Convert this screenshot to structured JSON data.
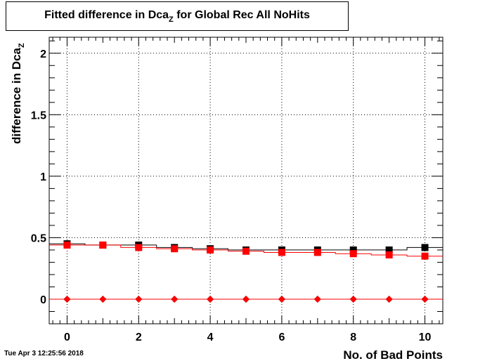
{
  "title_prefix": "Fitted difference in Dca",
  "title_sub": "Z",
  "title_suffix": " for Global Rec All NoHits",
  "timestamp": "Tue Apr  3 12:25:56 2018",
  "chart_data": {
    "type": "scatter",
    "xlabel": "No. of Bad Points",
    "ylabel_prefix": "difference in Dca",
    "ylabel_sub": "Z",
    "xlim": [
      -0.5,
      10.5
    ],
    "ylim": [
      -0.2,
      2.13
    ],
    "grid": true,
    "x_ticks": [
      0,
      2,
      4,
      6,
      8,
      10
    ],
    "y_ticks": [
      0,
      0.5,
      1,
      1.5,
      2
    ],
    "y_tick_labels": [
      "0",
      "0.5",
      "1",
      "1.5",
      "2"
    ],
    "series": [
      {
        "color": "#000000",
        "marker": "square",
        "x": [
          0,
          1,
          2,
          3,
          4,
          5,
          6,
          7,
          8,
          9,
          10
        ],
        "values": [
          0.45,
          0.44,
          0.44,
          0.42,
          0.41,
          0.4,
          0.4,
          0.4,
          0.4,
          0.4,
          0.42
        ]
      },
      {
        "color": "#ff0000",
        "marker": "square",
        "x": [
          0,
          1,
          2,
          3,
          4,
          5,
          6,
          7,
          8,
          9,
          10
        ],
        "values": [
          0.44,
          0.44,
          0.42,
          0.41,
          0.4,
          0.39,
          0.38,
          0.38,
          0.37,
          0.36,
          0.35
        ]
      },
      {
        "color": "#000000",
        "marker": "diamond",
        "x": [
          0,
          1,
          2,
          3,
          4,
          5,
          6,
          7,
          8,
          9,
          10
        ],
        "values": [
          0,
          0,
          0,
          0,
          0,
          0,
          0,
          0,
          0,
          0,
          0
        ]
      },
      {
        "color": "#ff0000",
        "marker": "diamond",
        "x": [
          0,
          1,
          2,
          3,
          4,
          5,
          6,
          7,
          8,
          9,
          10
        ],
        "values": [
          0,
          0,
          0,
          0,
          0,
          0,
          0,
          0,
          0,
          0,
          0
        ]
      }
    ]
  }
}
